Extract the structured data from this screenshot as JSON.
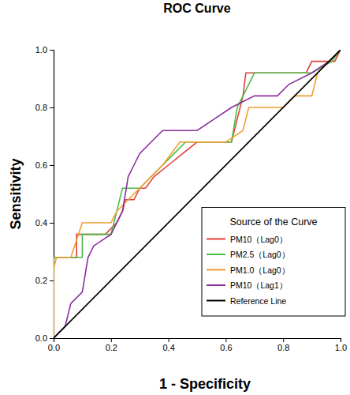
{
  "chart_data": {
    "type": "line",
    "title": "ROC Curve",
    "x_label": "1 - Specificity",
    "y_label": "Sensitivity",
    "legend_title": "Source of the Curve",
    "legend": "bottom-right",
    "grid": false,
    "marker": "none",
    "xlim": [
      0,
      1
    ],
    "ylim": [
      0,
      1
    ],
    "xticks": [
      {
        "value": 0,
        "label": "0.0"
      },
      0.2,
      0.4,
      0.6,
      0.8,
      {
        "value": 1,
        "label": "1.0"
      }
    ],
    "yticks": [
      {
        "value": 0,
        "label": "0.0"
      },
      0.2,
      0.4,
      0.6,
      0.8,
      {
        "value": 1,
        "label": "1.0"
      }
    ],
    "series": [
      {
        "name": "PM10（Lag0）",
        "color": "#e2403a",
        "x": [
          0,
          0,
          0.08,
          0.08,
          0.18,
          0.22,
          0.24,
          0.25,
          0.28,
          0.3,
          0.32,
          0.35,
          0.4,
          0.45,
          0.5,
          0.62,
          0.64,
          0.66,
          0.67,
          0.88,
          0.9,
          0.98,
          1
        ],
        "values": [
          0,
          0.28,
          0.28,
          0.36,
          0.36,
          0.4,
          0.44,
          0.48,
          0.48,
          0.52,
          0.52,
          0.56,
          0.6,
          0.64,
          0.68,
          0.68,
          0.76,
          0.84,
          0.92,
          0.92,
          0.96,
          0.96,
          1
        ]
      },
      {
        "name": "PM2.5（Lag0）",
        "color": "#4cbb45",
        "x": [
          0,
          0,
          0.1,
          0.1,
          0.2,
          0.22,
          0.24,
          0.3,
          0.34,
          0.38,
          0.42,
          0.46,
          0.62,
          0.64,
          0.68,
          0.7,
          0.9,
          0.97,
          1
        ],
        "values": [
          0,
          0.28,
          0.28,
          0.36,
          0.36,
          0.44,
          0.52,
          0.52,
          0.56,
          0.6,
          0.64,
          0.68,
          0.68,
          0.8,
          0.88,
          0.92,
          0.92,
          0.96,
          1
        ]
      },
      {
        "name": "PM1.0（Lag0）",
        "color": "#f0a030",
        "x": [
          0,
          0,
          0.01,
          0.06,
          0.1,
          0.2,
          0.22,
          0.26,
          0.3,
          0.34,
          0.38,
          0.44,
          0.6,
          0.66,
          0.68,
          0.8,
          0.84,
          0.9,
          0.92,
          0.96,
          1
        ],
        "values": [
          0,
          0.24,
          0.28,
          0.28,
          0.4,
          0.4,
          0.44,
          0.48,
          0.52,
          0.56,
          0.6,
          0.68,
          0.68,
          0.72,
          0.8,
          0.8,
          0.84,
          0.84,
          0.92,
          0.96,
          1
        ]
      },
      {
        "name": "PM10（Lag1）",
        "color": "#8a2f9e",
        "x": [
          0,
          0.04,
          0.06,
          0.1,
          0.12,
          0.14,
          0.2,
          0.24,
          0.26,
          0.28,
          0.3,
          0.34,
          0.38,
          0.5,
          0.56,
          0.62,
          0.7,
          0.78,
          0.82,
          0.9,
          0.96,
          1
        ],
        "values": [
          0,
          0.04,
          0.12,
          0.16,
          0.28,
          0.32,
          0.36,
          0.44,
          0.56,
          0.6,
          0.64,
          0.68,
          0.72,
          0.72,
          0.76,
          0.8,
          0.84,
          0.84,
          0.88,
          0.92,
          0.96,
          1
        ]
      },
      {
        "name": "Reference Line",
        "color": "#000000",
        "x": [
          0,
          1
        ],
        "values": [
          0,
          1
        ]
      }
    ]
  }
}
